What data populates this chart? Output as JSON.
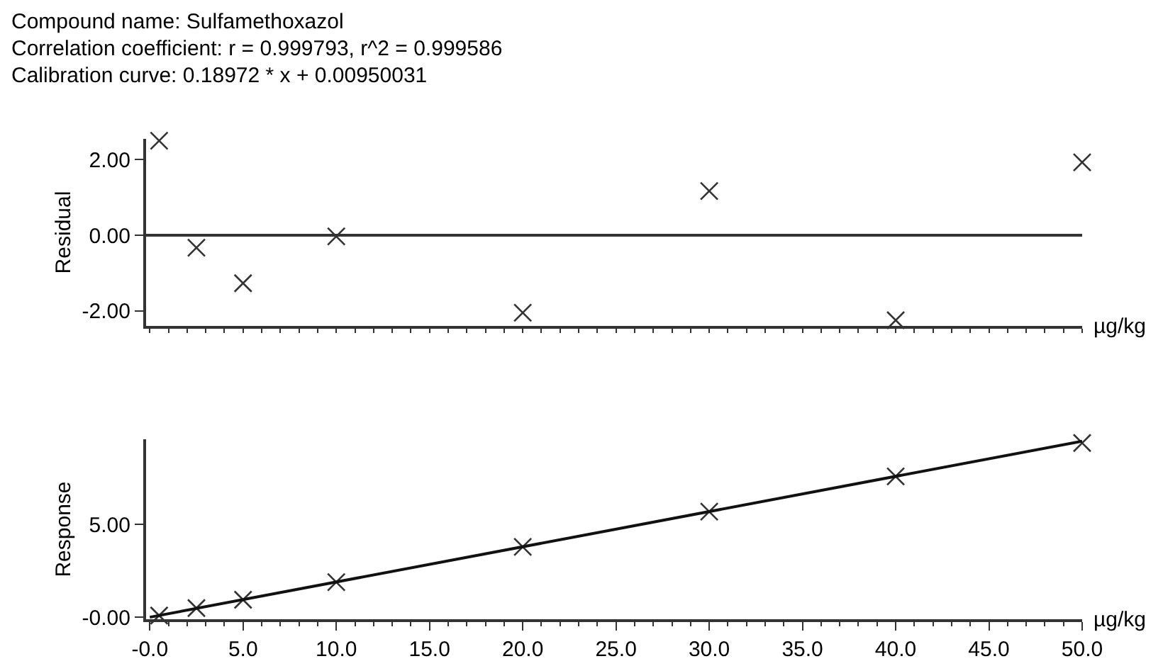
{
  "chart_data": [
    {
      "type": "scatter",
      "title": "Compound name: Sulfamethoxazol",
      "annotations": [
        "Correlation coefficient: r = 0.999793, r^2 = 0.999586",
        "Calibration curve: 0.18972 * x + 0.00950031"
      ],
      "ylabel": "Residual",
      "xlabel": "µg/kg",
      "marker": "cross",
      "tick_labels": "y",
      "x": [
        0.5,
        2.5,
        5,
        10,
        20,
        30,
        40,
        50
      ],
      "series": [
        {
          "color": "#333333",
          "values": [
            2.5,
            -0.33,
            -1.27,
            -0.03,
            -2.05,
            1.17,
            -2.25,
            1.93
          ]
        }
      ],
      "xlim": [
        -0.2,
        50
      ],
      "xticks": [
        {
          "value": 0,
          "label": null
        },
        {
          "value": 5,
          "label": null
        },
        {
          "value": 10,
          "label": null
        },
        {
          "value": 15,
          "label": null
        },
        {
          "value": 20,
          "label": null
        },
        {
          "value": 25,
          "label": null
        },
        {
          "value": 30,
          "label": null
        },
        {
          "value": 35,
          "label": null
        },
        {
          "value": 40,
          "label": null
        },
        {
          "value": 45,
          "label": null
        },
        {
          "value": 50,
          "label": null
        }
      ],
      "ylim": [
        -2.4,
        2.55
      ],
      "yticks": [
        {
          "value": -2,
          "label": "-2.00"
        },
        {
          "value": 0,
          "label": "0.00"
        },
        {
          "value": 2,
          "label": "2.00"
        }
      ],
      "ref_lines": [
        {
          "axis": "y",
          "value": 0,
          "color": "#333333"
        }
      ]
    },
    {
      "type": "scatter",
      "ylabel": "Response",
      "xlabel": "µg/kg",
      "marker": "cross",
      "x": [
        0.5,
        2.5,
        5,
        10,
        20,
        30,
        40,
        50
      ],
      "series": [
        {
          "color": "#333333",
          "values": [
            0.1,
            0.5,
            0.95,
            1.9,
            3.8,
            5.7,
            7.6,
            9.4
          ]
        },
        {
          "type": "line",
          "color": "#111111",
          "x": [
            0,
            50
          ],
          "values": [
            0.01,
            9.5
          ],
          "marker": "none"
        }
      ],
      "xlim": [
        -0.2,
        50
      ],
      "xticks": [
        {
          "value": 0,
          "label": "-0.0"
        },
        {
          "value": 5,
          "label": "5.0"
        },
        {
          "value": 10,
          "label": "10.0"
        },
        {
          "value": 15,
          "label": "15.0"
        },
        {
          "value": 20,
          "label": "20.0"
        },
        {
          "value": 25,
          "label": "25.0"
        },
        {
          "value": 30,
          "label": "30.0"
        },
        {
          "value": 35,
          "label": "35.0"
        },
        {
          "value": 40,
          "label": "40.0"
        },
        {
          "value": 45,
          "label": "45.0"
        },
        {
          "value": 50,
          "label": "50.0"
        }
      ],
      "ylim": [
        -0.1,
        9.6
      ],
      "yticks": [
        {
          "value": 0,
          "label": "-0.00"
        },
        {
          "value": 5,
          "label": "5.00"
        }
      ]
    }
  ]
}
